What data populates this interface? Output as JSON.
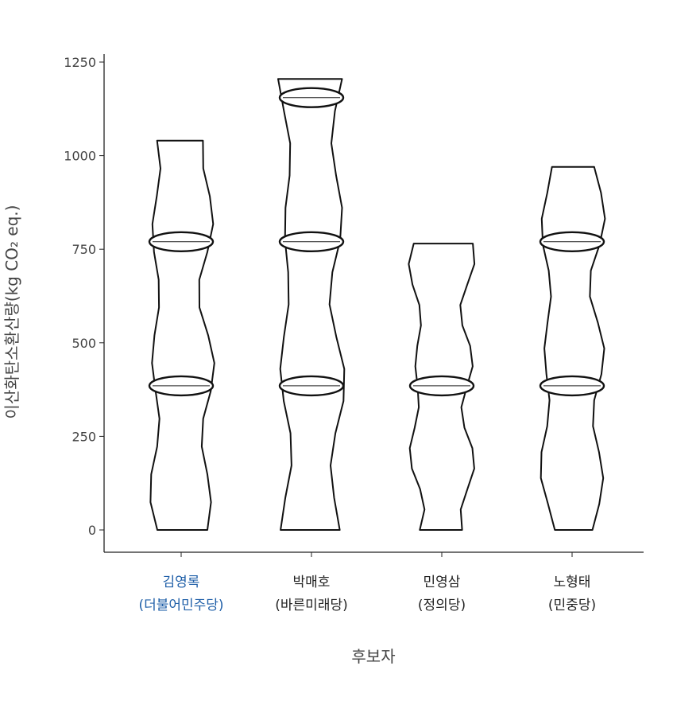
{
  "chart_data": {
    "type": "bar",
    "ylabel": "이산화탄소환산량(kg CO₂ eq.)",
    "xlabel": "후보자",
    "ylim": [
      0,
      1250
    ],
    "yticks": [
      {
        "value": 0,
        "label": "0"
      },
      {
        "value": 250,
        "label": "250"
      },
      {
        "value": 500,
        "label": "500"
      },
      {
        "value": 750,
        "label": "750"
      },
      {
        "value": 1000,
        "label": "1000"
      },
      {
        "value": 1250,
        "label": "1250"
      }
    ],
    "grid": false,
    "categories": [
      {
        "name": "김영록",
        "party": "(더불어민주당)",
        "value": 1040,
        "highlight": true
      },
      {
        "name": "박매호",
        "party": "(바른미래당)",
        "value": 1205,
        "highlight": false
      },
      {
        "name": "민영삼",
        "party": "(정의당)",
        "value": 765,
        "highlight": false
      },
      {
        "name": "노형태",
        "party": "(민중당)",
        "value": 970,
        "highlight": false
      }
    ],
    "colors": {
      "highlight_label": "#1f5fa8",
      "label": "#222222",
      "bar_fill": "#ffffff",
      "bar_stroke": "#111111"
    }
  }
}
